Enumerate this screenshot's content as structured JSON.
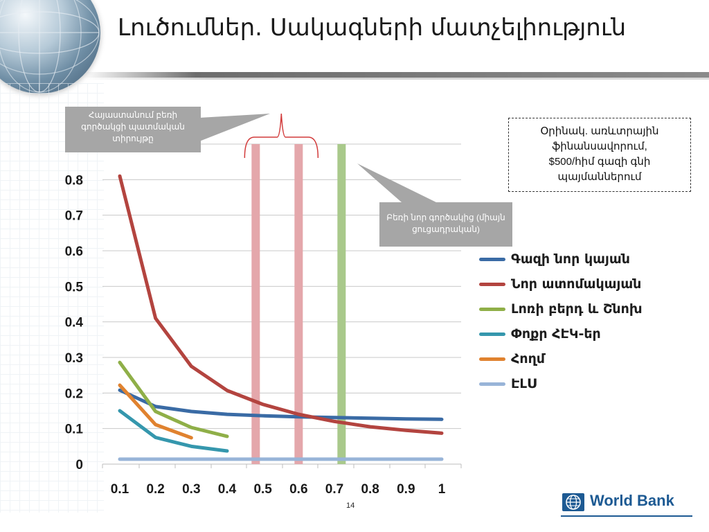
{
  "slide": {
    "title": "Լուծումներ. Սակագների մատչելիություն",
    "page_number": "14"
  },
  "callouts": {
    "left": "Հայաստանում բեռի գործակցի պատմական տիրույթը",
    "right": "Բեռի նոր գործակից (միայն ցուցադրական)"
  },
  "example_box": {
    "lines": [
      "Օրինակ. առևտրային",
      "ֆինանսավորում,",
      "$500/հիմ գազի գնի",
      "պայմաններում"
    ]
  },
  "logo": {
    "text": "World Bank"
  },
  "chart_data": {
    "type": "line",
    "x_ticks": [
      "0.1",
      "0.2",
      "0.3",
      "0.4",
      "0.5",
      "0.6",
      "0.7",
      "0.8",
      "0.9",
      "1"
    ],
    "y_ticks": [
      "0",
      "0.1",
      "0.2",
      "0.3",
      "0.4",
      "0.5",
      "0.6",
      "0.7",
      "0.8"
    ],
    "xlim": [
      0.1,
      1.0
    ],
    "ylim": [
      0,
      0.9
    ],
    "grid": true,
    "legend_position": "right",
    "series": [
      {
        "name": "Գազի նոր կայան",
        "color": "#3a6ba5",
        "x": [
          0.1,
          0.2,
          0.3,
          0.4,
          0.5,
          0.6,
          0.7,
          0.8,
          0.9,
          1.0
        ],
        "y": [
          0.208,
          0.162,
          0.148,
          0.14,
          0.136,
          0.133,
          0.131,
          0.129,
          0.127,
          0.126
        ]
      },
      {
        "name": "Նոր ատոմակայան",
        "color": "#b3443f",
        "x": [
          0.1,
          0.2,
          0.3,
          0.4,
          0.5,
          0.6,
          0.7,
          0.8,
          0.9,
          1.0
        ],
        "y": [
          0.81,
          0.41,
          0.275,
          0.207,
          0.168,
          0.14,
          0.12,
          0.105,
          0.095,
          0.087
        ]
      },
      {
        "name": "Լոռի բերդ և Շնոխ",
        "color": "#8faf48",
        "x": [
          0.1,
          0.2,
          0.3,
          0.4
        ],
        "y": [
          0.286,
          0.148,
          0.103,
          0.078
        ]
      },
      {
        "name": "Փոքր ՀԷԿ-եր",
        "color": "#3597ad",
        "x": [
          0.1,
          0.2,
          0.3,
          0.4
        ],
        "y": [
          0.15,
          0.075,
          0.05,
          0.037
        ]
      },
      {
        "name": "Հողմ",
        "color": "#e0822f",
        "x": [
          0.1,
          0.2,
          0.3
        ],
        "y": [
          0.222,
          0.111,
          0.074
        ]
      },
      {
        "name": "ԷԼՍ",
        "color": "#98b4d8",
        "x": [
          0.1,
          1.0
        ],
        "y": [
          0.014,
          0.014
        ]
      }
    ],
    "markers": [
      {
        "x": 0.48,
        "color": "#e4a7ab"
      },
      {
        "x": 0.6,
        "color": "#e4a7ab"
      },
      {
        "x": 0.72,
        "color": "#a9c98b"
      }
    ]
  }
}
